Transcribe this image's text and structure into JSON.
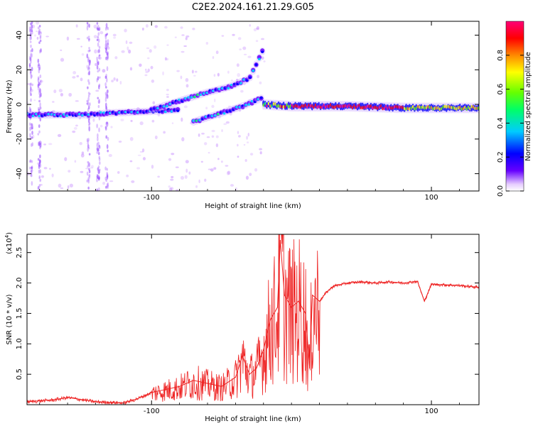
{
  "figure_title": "C2E2.2024.161.21.29.G05",
  "chart_data": [
    {
      "type": "heatmap",
      "title": "C2E2.2024.161.21.29.G05",
      "xlabel": "Height of straight line (km)",
      "ylabel": "Frequency (Hz)",
      "xlim": [
        -189,
        134
      ],
      "ylim": [
        -50,
        48
      ],
      "x_ticks": [
        -100,
        100
      ],
      "x_tick_labels": [
        "-100",
        "100"
      ],
      "y_ticks": [
        -40,
        -20,
        0,
        20,
        40
      ],
      "y_tick_labels": [
        "-40",
        "-20",
        "0",
        "20",
        "40"
      ],
      "colorbar": {
        "label": "Normalized spectral amplitude",
        "range": [
          0,
          1
        ],
        "ticks": [
          0.0,
          0.2,
          0.4,
          0.6,
          0.8
        ],
        "tick_labels": [
          "0.0",
          "0.2",
          "0.4",
          "0.6",
          "0.8"
        ],
        "colormap": [
          "#ffffff",
          "#6600ff",
          "#0000ff",
          "#00ccff",
          "#00ff66",
          "#66ff00",
          "#ffff00",
          "#ff8800",
          "#ff0000",
          "#ff0077"
        ]
      },
      "features": [
        {
          "name": "main band left",
          "x": [
            -189,
            -145,
            -130,
            -100,
            -80
          ],
          "freq": [
            -6,
            -6,
            -5,
            -4,
            -3
          ],
          "amp": 0.3
        },
        {
          "name": "rising branch upper",
          "x": [
            -100,
            -80,
            -60,
            -45,
            -30,
            -20
          ],
          "freq": [
            -3,
            2,
            7,
            10,
            15,
            32
          ],
          "amp": 0.35
        },
        {
          "name": "rising branch lower",
          "x": [
            -70,
            -50,
            -35,
            -20
          ],
          "freq": [
            -10,
            -5,
            -1,
            4
          ],
          "amp": 0.35
        },
        {
          "name": "stable band",
          "x": [
            -20,
            0,
            40,
            80,
            134
          ],
          "freq": [
            0,
            -1,
            -1,
            -2,
            -2
          ],
          "amp": 0.85
        }
      ]
    },
    {
      "type": "line",
      "xlabel": "Height of straight line (km)",
      "ylabel": "SNR (10 * v/v)",
      "y_scale_label": "(x10",
      "y_scale_exponent": "4",
      "y_scale_suffix": ")",
      "xlim": [
        -189,
        134
      ],
      "ylim": [
        0,
        2.8
      ],
      "x_ticks": [
        -100,
        100
      ],
      "x_tick_labels": [
        "-100",
        "100"
      ],
      "y_ticks": [
        0.5,
        1.0,
        1.5,
        2.0,
        2.5
      ],
      "y_tick_labels": [
        "0.5",
        "1.0",
        "1.5",
        "2.0",
        "2.5"
      ],
      "color": "#ee2222",
      "series": [
        {
          "name": "SNR",
          "x": [
            -189,
            -170,
            -160,
            -140,
            -120,
            -110,
            -100,
            -90,
            -80,
            -70,
            -60,
            -50,
            -40,
            -35,
            -30,
            -25,
            -20,
            -15,
            -10,
            -8,
            -5,
            0,
            5,
            10,
            13,
            15,
            20,
            25,
            30,
            40,
            50,
            60,
            70,
            80,
            90,
            95,
            100,
            110,
            120,
            134
          ],
          "y": [
            0.05,
            0.08,
            0.12,
            0.05,
            0.03,
            0.1,
            0.2,
            0.25,
            0.3,
            0.4,
            0.35,
            0.3,
            0.45,
            0.8,
            0.5,
            0.6,
            0.9,
            1.4,
            1.6,
            2.7,
            1.8,
            1.6,
            1.7,
            1.5,
            0.6,
            1.8,
            1.7,
            1.85,
            1.95,
            2.0,
            2.02,
            2.0,
            2.02,
            2.0,
            2.03,
            1.7,
            1.98,
            1.97,
            1.96,
            1.93
          ]
        }
      ]
    }
  ]
}
